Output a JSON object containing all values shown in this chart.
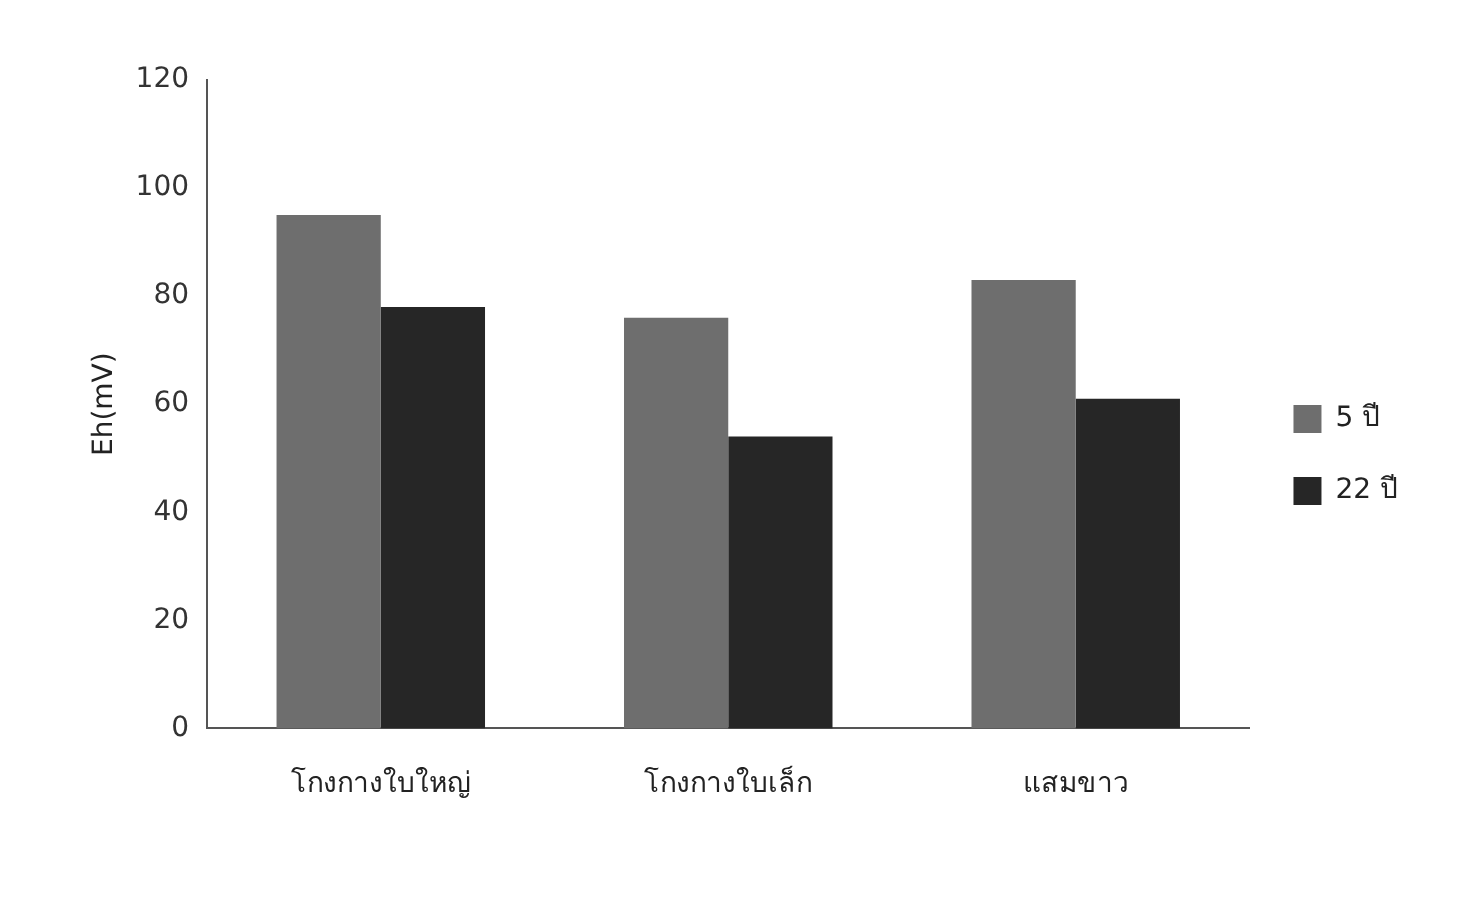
{
  "chart_data": {
    "type": "bar",
    "ylabel": "Eh(mV)",
    "categories": [
      "โกงกางใบใหญ่",
      "โกงกางใบเล็ก",
      "แสมขาว"
    ],
    "series": [
      {
        "name": "5 ปี",
        "color": "#6e6e6e",
        "values": [
          95,
          76,
          83
        ]
      },
      {
        "name": "22 ปี",
        "color": "#262626",
        "values": [
          78,
          54,
          61
        ]
      }
    ],
    "ylim": [
      0,
      120
    ],
    "yticks": [
      0,
      20,
      40,
      60,
      80,
      100,
      120
    ],
    "grid": false,
    "legend": "right"
  }
}
